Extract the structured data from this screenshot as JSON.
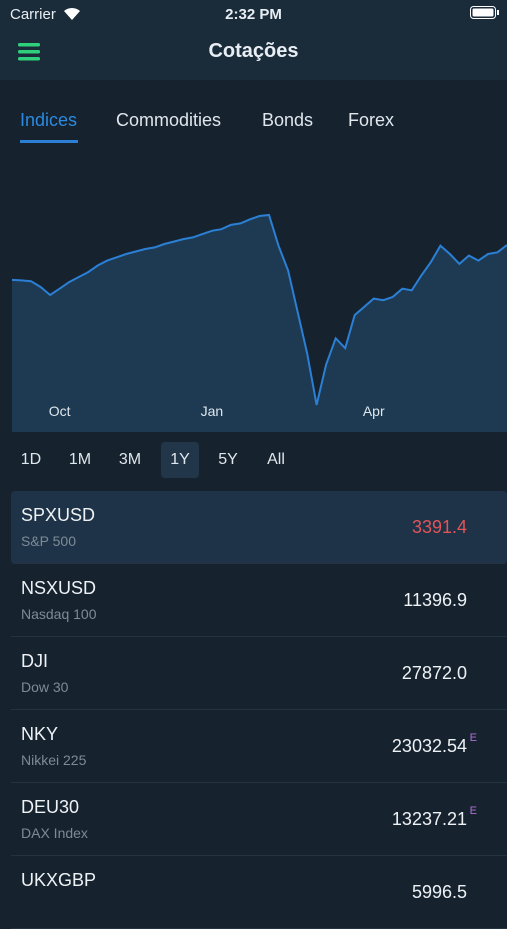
{
  "status": {
    "carrier": "Carrier",
    "time": "2:32 PM"
  },
  "header": {
    "title": "Cotações"
  },
  "tabs": [
    "Indices",
    "Commodities",
    "Bonds",
    "Forex"
  ],
  "chart_data": {
    "type": "area",
    "color": "#2b80d6",
    "fill": "#1d3a52",
    "categories": [
      null,
      null,
      null,
      null,
      null,
      "Oct",
      null,
      null,
      null,
      null,
      null,
      null,
      null,
      null,
      null,
      null,
      null,
      null,
      null,
      null,
      null,
      "Jan",
      null,
      null,
      null,
      null,
      null,
      null,
      null,
      null,
      null,
      null,
      null,
      null,
      null,
      null,
      null,
      null,
      "Apr",
      null,
      null,
      null,
      null,
      null,
      null,
      null,
      null,
      null,
      null,
      null,
      null,
      null,
      null
    ],
    "values": [
      2993,
      2990,
      2985,
      2950,
      2902,
      2940,
      2980,
      3010,
      3040,
      3080,
      3110,
      3130,
      3150,
      3165,
      3180,
      3190,
      3210,
      3225,
      3240,
      3250,
      3270,
      3290,
      3300,
      3326,
      3335,
      3360,
      3380,
      3386,
      3200,
      3050,
      2800,
      2550,
      2237,
      2480,
      2640,
      2580,
      2780,
      2830,
      2880,
      2870,
      2890,
      2940,
      2930,
      3020,
      3100,
      3200,
      3150,
      3090,
      3140,
      3110,
      3150,
      3160,
      3204
    ],
    "ylim": [
      2085,
      3658
    ]
  },
  "ranges": [
    "1D",
    "1M",
    "3M",
    "1Y",
    "5Y",
    "All"
  ],
  "quotes": [
    {
      "symbol": "SPXUSD",
      "name": "S&P 500",
      "price": "3391.4"
    },
    {
      "symbol": "NSXUSD",
      "name": "Nasdaq 100",
      "price": "11396.9"
    },
    {
      "symbol": "DJI",
      "name": "Dow 30",
      "price": "27872.0"
    },
    {
      "symbol": "NKY",
      "name": "Nikkei 225",
      "price": "23032.54",
      "flag": "E"
    },
    {
      "symbol": "DEU30",
      "name": "DAX Index",
      "price": "13237.21",
      "flag": "E"
    },
    {
      "symbol": "UKXGBP",
      "price": "5996.5"
    }
  ]
}
